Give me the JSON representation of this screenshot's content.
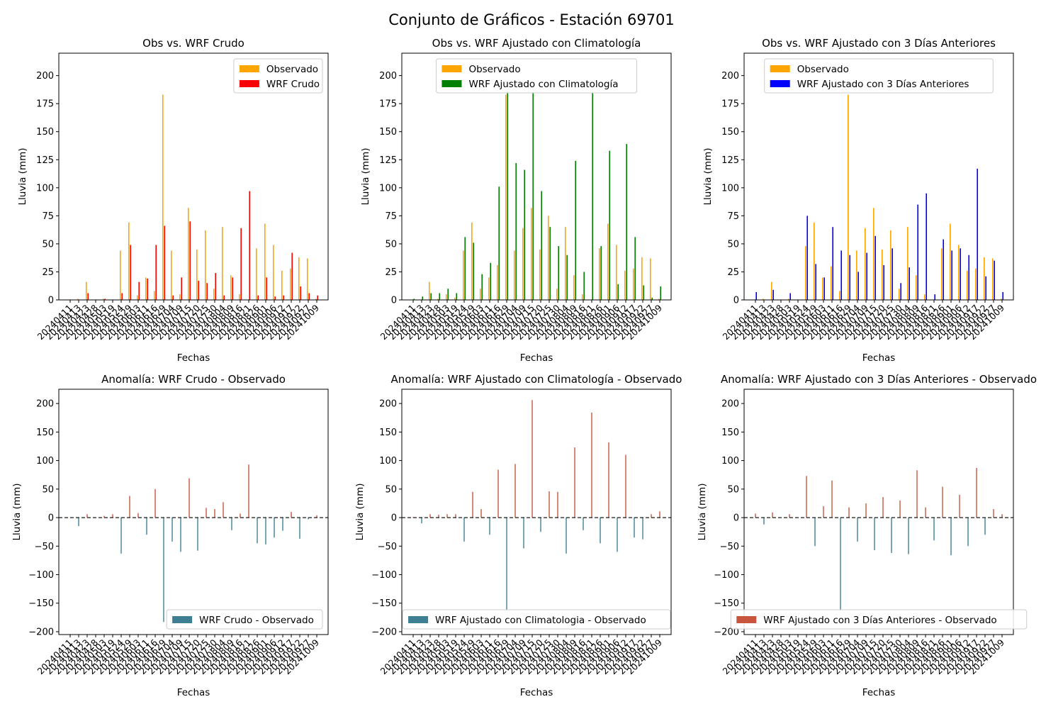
{
  "figure": {
    "title": "Conjunto de Gráficos - Estación 69701"
  },
  "colors": {
    "observed": "#FFA500",
    "wrf_raw": "#FF0000",
    "wrf_clim": "#008000",
    "wrf_3d": "#0000FF",
    "anomaly_negative": "#3F7F93",
    "anomaly_positive": "#C8553D"
  },
  "chart_data": [
    {
      "id": "p1",
      "type": "bar",
      "title": "Obs vs. WRF Crudo",
      "xlabel": "Fechas",
      "ylabel": "Lluvia (mm)",
      "ylim": [
        0,
        220
      ],
      "yticks": [
        0,
        25,
        50,
        75,
        100,
        125,
        150,
        175,
        200
      ],
      "legend_position": "upper-right",
      "categories": [
        "20240411",
        "20240413",
        "20240423",
        "20240428",
        "20240503",
        "20240519",
        "20240524",
        "20240529",
        "20240603",
        "20240611",
        "20240616",
        "20240629",
        "20240704",
        "20240709",
        "20240715",
        "20240720",
        "20240725",
        "20240730",
        "20240804",
        "20240809",
        "20240816",
        "20240821",
        "20240826",
        "20240901",
        "20240906",
        "20240912",
        "20240917",
        "20240922",
        "20240927",
        "20241009"
      ],
      "series": [
        {
          "name": "Observado",
          "color": "#FFA500",
          "values": [
            0,
            1,
            16,
            0,
            1,
            0,
            44,
            69,
            4,
            20,
            8,
            183,
            44,
            5,
            82,
            45,
            62,
            10,
            65,
            22,
            5,
            0,
            46,
            68,
            49,
            26,
            28,
            38,
            37,
            1
          ]
        },
        {
          "name": "WRF Crudo",
          "color": "#FF0000",
          "values": [
            0,
            0,
            6,
            0,
            1,
            0,
            6,
            49,
            16,
            19,
            49,
            66,
            4,
            20,
            70,
            17,
            15,
            24,
            4,
            20,
            64,
            97,
            4,
            20,
            3,
            4,
            42,
            12,
            6,
            4
          ]
        }
      ]
    },
    {
      "id": "p2",
      "type": "bar",
      "title": "Obs vs. WRF Ajustado con Climatología",
      "xlabel": "Fechas",
      "ylabel": "Lluvia (mm)",
      "ylim": [
        0,
        220
      ],
      "yticks": [
        0,
        25,
        50,
        75,
        100,
        125,
        150,
        175,
        200
      ],
      "legend_position": "upper-center",
      "categories": [
        "20240411",
        "20240413",
        "20240423",
        "20240428",
        "20240503",
        "20240519",
        "20240524",
        "20240529",
        "20240603",
        "20240611",
        "20240616",
        "20240629",
        "20240704",
        "20240709",
        "20240715",
        "20240720",
        "20240725",
        "20240730",
        "20240804",
        "20240809",
        "20240816",
        "20240821",
        "20240826",
        "20240901",
        "20240906",
        "20240912",
        "20240917",
        "20240922",
        "20240927",
        "20241009"
      ],
      "series": [
        {
          "name": "Observado",
          "color": "#FFA500",
          "values": [
            0,
            0,
            16,
            1,
            5,
            2,
            44,
            69,
            10,
            20,
            31,
            183,
            44,
            64,
            82,
            45,
            75,
            10,
            65,
            22,
            5,
            0,
            46,
            68,
            49,
            26,
            28,
            38,
            37,
            1
          ]
        },
        {
          "name": "WRF Ajustado con Climatología",
          "color": "#008000",
          "values": [
            1,
            3,
            6,
            6,
            10,
            6,
            56,
            51,
            23,
            33,
            101,
            186,
            122,
            116,
            185,
            97,
            65,
            48,
            40,
            124,
            25,
            185,
            48,
            133,
            14,
            139,
            56,
            13,
            2,
            12
          ]
        }
      ]
    },
    {
      "id": "p3",
      "type": "bar",
      "title": "Obs vs. WRF Ajustado con 3 Días Anteriores",
      "xlabel": "Fechas",
      "ylabel": "Lluvia (mm)",
      "ylim": [
        0,
        220
      ],
      "yticks": [
        0,
        25,
        50,
        75,
        100,
        125,
        150,
        175,
        200
      ],
      "legend_position": "upper-center",
      "categories": [
        "20240411",
        "20240413",
        "20240423",
        "20240428",
        "20240503",
        "20240519",
        "20240524",
        "20240529",
        "20240603",
        "20240611",
        "20240616",
        "20240629",
        "20240704",
        "20240709",
        "20240715",
        "20240720",
        "20240725",
        "20240730",
        "20240804",
        "20240809",
        "20240816",
        "20240821",
        "20240826",
        "20240901",
        "20240906",
        "20240912",
        "20240917",
        "20240922",
        "20240927",
        "20241009"
      ],
      "series": [
        {
          "name": "Observado",
          "color": "#FFA500",
          "values": [
            0,
            1,
            16,
            0,
            1,
            0,
            48,
            69,
            20,
            30,
            8,
            183,
            44,
            64,
            82,
            45,
            62,
            10,
            65,
            22,
            5,
            0,
            46,
            68,
            49,
            26,
            28,
            38,
            37,
            1
          ]
        },
        {
          "name": "WRF Ajustado con 3 Días Anteriores",
          "color": "#0000FF",
          "values": [
            7,
            0,
            9,
            0,
            6,
            0,
            75,
            32,
            20,
            65,
            44,
            40,
            25,
            42,
            57,
            31,
            46,
            15,
            29,
            85,
            95,
            5,
            54,
            44,
            46,
            40,
            117,
            21,
            35,
            7
          ]
        }
      ]
    },
    {
      "id": "p4",
      "type": "bar",
      "title": "Anomalía: WRF Crudo - Observado",
      "xlabel": "Fechas",
      "ylabel": "Lluvia (mm)",
      "ylim": [
        -205,
        225
      ],
      "yticks": [
        -200,
        -150,
        -100,
        -50,
        0,
        50,
        100,
        150,
        200
      ],
      "legend_position": "lower-right",
      "categories": [
        "20240411",
        "20240413",
        "20240423",
        "20240428",
        "20240503",
        "20240519",
        "20240524",
        "20240529",
        "20240603",
        "20240611",
        "20240616",
        "20240629",
        "20240704",
        "20240709",
        "20240715",
        "20240720",
        "20240725",
        "20240730",
        "20240804",
        "20240809",
        "20240816",
        "20240821",
        "20240826",
        "20240901",
        "20240906",
        "20240912",
        "20240917",
        "20240922",
        "20240927",
        "20241009"
      ],
      "series": [
        {
          "name": "WRF Crudo - Observado",
          "color": "#3F7F93",
          "values": [
            0,
            -15,
            6,
            0,
            3,
            6,
            -63,
            38,
            8,
            -30,
            50,
            -183,
            -42,
            -60,
            69,
            -58,
            17,
            15,
            27,
            -22,
            7,
            93,
            -45,
            -47,
            -35,
            -23,
            10,
            -37,
            -3,
            4
          ]
        }
      ]
    },
    {
      "id": "p5",
      "type": "bar",
      "title": "Anomalía: WRF Ajustado con Climatología - Observado",
      "xlabel": "Fechas",
      "ylabel": "Lluvia (mm)",
      "ylim": [
        -205,
        225
      ],
      "yticks": [
        -200,
        -150,
        -100,
        -50,
        0,
        50,
        100,
        150,
        200
      ],
      "legend_position": "lower-center",
      "categories": [
        "20240411",
        "20240413",
        "20240423",
        "20240428",
        "20240503",
        "20240519",
        "20240524",
        "20240529",
        "20240603",
        "20240611",
        "20240616",
        "20240629",
        "20240704",
        "20240709",
        "20240715",
        "20240720",
        "20240725",
        "20240730",
        "20240804",
        "20240809",
        "20240816",
        "20240821",
        "20240826",
        "20240901",
        "20240906",
        "20240912",
        "20240917",
        "20240922",
        "20240927",
        "20241009"
      ],
      "series": [
        {
          "name": "WRF Ajustado con Climatologia - Observado",
          "color": "#3F7F93",
          "values": [
            1,
            -10,
            6,
            5,
            6,
            6,
            -42,
            45,
            15,
            -30,
            84,
            -163,
            94,
            -54,
            206,
            -25,
            46,
            45,
            -63,
            123,
            -22,
            184,
            -45,
            132,
            -60,
            110,
            -35,
            -38,
            6,
            11
          ]
        }
      ]
    },
    {
      "id": "p6",
      "type": "bar",
      "title": "Anomalía: WRF Ajustado con 3 Días Anteriores - Observado",
      "xlabel": "Fechas",
      "ylabel": "Lluvia (mm)",
      "ylim": [
        -205,
        225
      ],
      "yticks": [
        -200,
        -150,
        -100,
        -50,
        0,
        50,
        100,
        150,
        200
      ],
      "legend_position": "lower-center",
      "categories": [
        "20240411",
        "20240413",
        "20240423",
        "20240428",
        "20240503",
        "20240519",
        "20240524",
        "20240529",
        "20240603",
        "20240611",
        "20240616",
        "20240629",
        "20240704",
        "20240709",
        "20240715",
        "20240720",
        "20240725",
        "20240730",
        "20240804",
        "20240809",
        "20240816",
        "20240821",
        "20240826",
        "20240901",
        "20240906",
        "20240912",
        "20240917",
        "20240922",
        "20240927",
        "20241009"
      ],
      "series": [
        {
          "name": "WRF Ajustado con 3 Días Anteriores - Observado",
          "color": "#C8553D",
          "values": [
            7,
            -12,
            9,
            0,
            6,
            0,
            73,
            -50,
            20,
            65,
            -163,
            18,
            -42,
            25,
            -57,
            36,
            -62,
            30,
            -64,
            83,
            18,
            -40,
            54,
            -66,
            40,
            -50,
            87,
            -30,
            15,
            6
          ]
        }
      ]
    }
  ]
}
